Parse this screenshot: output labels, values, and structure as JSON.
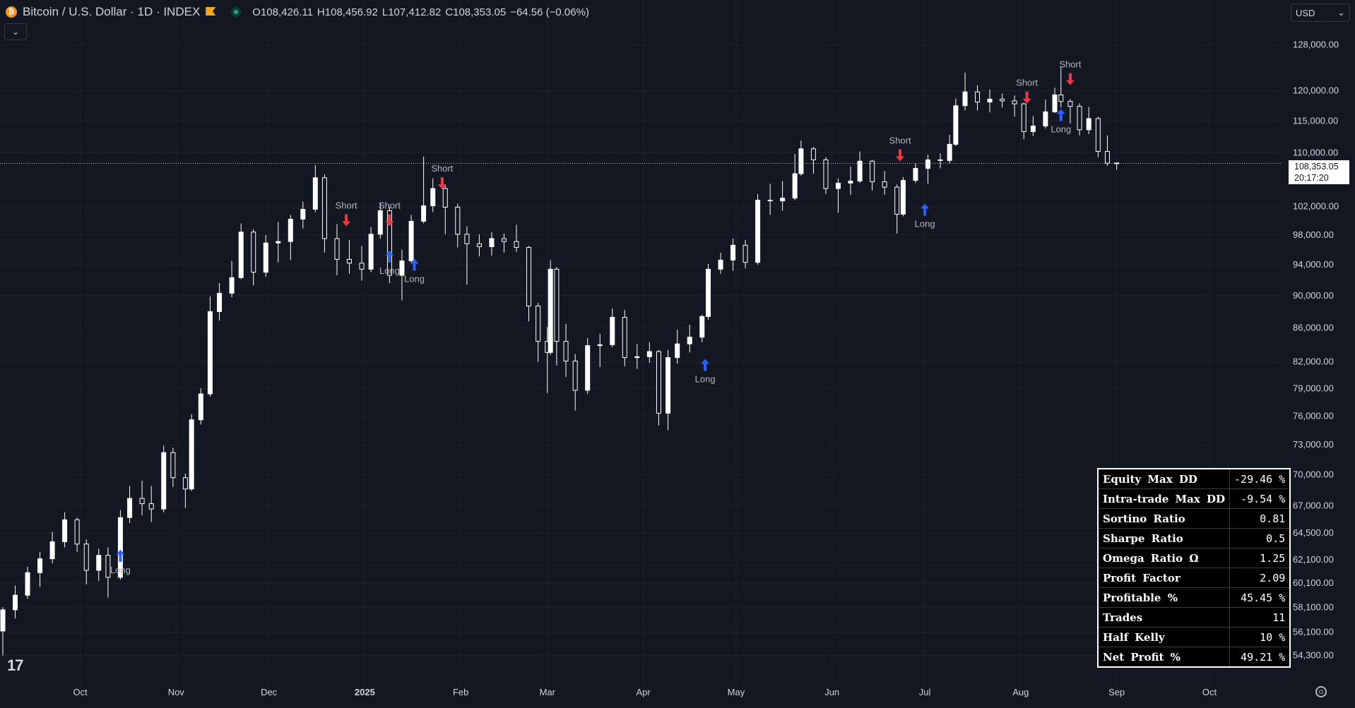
{
  "header": {
    "symbol": "Bitcoin / U.S. Dollar · 1D · INDEX",
    "ohlc": [
      {
        "key": "O",
        "value": "108,426.11"
      },
      {
        "key": "H",
        "value": "108,456.92"
      },
      {
        "key": "L",
        "value": "107,412.82"
      },
      {
        "key": "C",
        "value": "108,353.05"
      },
      {
        "key": "",
        "value": "−64.56 (−0.06%)"
      }
    ]
  },
  "currency": {
    "label": "USD"
  },
  "last_price": {
    "value": "108,353.05",
    "countdown": "20:17:20"
  },
  "stats_table": [
    {
      "label": "Equity Max DD",
      "value": "-29.46 %"
    },
    {
      "label": "Intra-trade Max DD",
      "value": "-9.54 %"
    },
    {
      "label": "Sortino Ratio",
      "value": "0.81"
    },
    {
      "label": "Sharpe Ratio",
      "value": "0.5"
    },
    {
      "label": "Omega Ratio Ω",
      "value": "1.25"
    },
    {
      "label": "Profit Factor",
      "value": "2.09"
    },
    {
      "label": "Profitable %",
      "value": "45.45 %"
    },
    {
      "label": "Trades",
      "value": "11"
    },
    {
      "label": "Half Kelly",
      "value": "10 %"
    },
    {
      "label": "Net Profit %",
      "value": "49.21 %"
    }
  ],
  "colors": {
    "background": "#131722",
    "grid": "#1e222d",
    "candle": "#ffffff",
    "long": "#2962ff",
    "short": "#f23645",
    "text": "#d1d4dc"
  },
  "chart_data": {
    "type": "candlestick",
    "y_scale": "log",
    "ylim": [
      52900,
      131000
    ],
    "y_ticks": [
      {
        "v": 128000,
        "label": "128,000.00"
      },
      {
        "v": 120000,
        "label": "120,000.00"
      },
      {
        "v": 115000,
        "label": "115,000.00"
      },
      {
        "v": 110000,
        "label": "110,000.00"
      },
      {
        "v": 102000,
        "label": "102,000.00"
      },
      {
        "v": 98000,
        "label": "98,000.00"
      },
      {
        "v": 94000,
        "label": "94,000.00"
      },
      {
        "v": 90000,
        "label": "90,000.00"
      },
      {
        "v": 86000,
        "label": "86,000.00"
      },
      {
        "v": 82000,
        "label": "82,000.00"
      },
      {
        "v": 79000,
        "label": "79,000.00"
      },
      {
        "v": 76000,
        "label": "76,000.00"
      },
      {
        "v": 73000,
        "label": "73,000.00"
      },
      {
        "v": 70000,
        "label": "70,000.00"
      },
      {
        "v": 67000,
        "label": "67,000.00"
      },
      {
        "v": 64500,
        "label": "64,500.00"
      },
      {
        "v": 62100,
        "label": "62,100.00"
      },
      {
        "v": 60100,
        "label": "60,100.00"
      },
      {
        "v": 58100,
        "label": "58,100.00"
      },
      {
        "v": 56100,
        "label": "56,100.00"
      },
      {
        "v": 54300,
        "label": "54,300.00"
      }
    ],
    "x_ticks": [
      {
        "d": "2024-10-01",
        "label": "Oct",
        "bold": false
      },
      {
        "d": "2024-11-01",
        "label": "Nov",
        "bold": false
      },
      {
        "d": "2024-12-01",
        "label": "Dec",
        "bold": false
      },
      {
        "d": "2025-01-01",
        "label": "2025",
        "bold": true
      },
      {
        "d": "2025-02-01",
        "label": "Feb",
        "bold": false
      },
      {
        "d": "2025-03-01",
        "label": "Mar",
        "bold": false
      },
      {
        "d": "2025-04-01",
        "label": "Apr",
        "bold": false
      },
      {
        "d": "2025-05-01",
        "label": "May",
        "bold": false
      },
      {
        "d": "2025-06-01",
        "label": "Jun",
        "bold": false
      },
      {
        "d": "2025-07-01",
        "label": "Jul",
        "bold": false
      },
      {
        "d": "2025-08-01",
        "label": "Aug",
        "bold": false
      },
      {
        "d": "2025-09-01",
        "label": "Sep",
        "bold": false
      },
      {
        "d": "2025-10-01",
        "label": "Oct",
        "bold": false
      }
    ],
    "x_range": [
      "2024-09-06",
      "2025-10-01"
    ],
    "last_close": 108353.05,
    "candles": [
      {
        "d": "2024-09-06",
        "o": 56200,
        "h": 58100,
        "l": 54300,
        "c": 57900
      },
      {
        "d": "2024-09-10",
        "o": 57900,
        "h": 59900,
        "l": 57200,
        "c": 59100
      },
      {
        "d": "2024-09-14",
        "o": 59100,
        "h": 61500,
        "l": 58800,
        "c": 61000
      },
      {
        "d": "2024-09-18",
        "o": 61000,
        "h": 62800,
        "l": 59800,
        "c": 62200
      },
      {
        "d": "2024-09-22",
        "o": 62200,
        "h": 64600,
        "l": 61800,
        "c": 63700
      },
      {
        "d": "2024-09-26",
        "o": 63700,
        "h": 66400,
        "l": 63200,
        "c": 65700
      },
      {
        "d": "2024-09-30",
        "o": 65700,
        "h": 65900,
        "l": 62800,
        "c": 63500
      },
      {
        "d": "2024-10-03",
        "o": 63500,
        "h": 63900,
        "l": 60000,
        "c": 61200
      },
      {
        "d": "2024-10-07",
        "o": 61200,
        "h": 63100,
        "l": 60300,
        "c": 62500
      },
      {
        "d": "2024-10-10",
        "o": 62500,
        "h": 63200,
        "l": 58900,
        "c": 60600
      },
      {
        "d": "2024-10-14",
        "o": 60600,
        "h": 66600,
        "l": 60400,
        "c": 65900
      },
      {
        "d": "2024-10-17",
        "o": 65900,
        "h": 68900,
        "l": 65400,
        "c": 67700
      },
      {
        "d": "2024-10-21",
        "o": 67700,
        "h": 69400,
        "l": 66100,
        "c": 67200
      },
      {
        "d": "2024-10-24",
        "o": 67200,
        "h": 68900,
        "l": 65500,
        "c": 66700
      },
      {
        "d": "2024-10-28",
        "o": 66700,
        "h": 72900,
        "l": 66400,
        "c": 72200
      },
      {
        "d": "2024-10-31",
        "o": 72200,
        "h": 72700,
        "l": 68800,
        "c": 69700
      },
      {
        "d": "2024-11-04",
        "o": 69700,
        "h": 70100,
        "l": 66800,
        "c": 68600
      },
      {
        "d": "2024-11-06",
        "o": 68600,
        "h": 76200,
        "l": 68400,
        "c": 75600
      },
      {
        "d": "2024-11-09",
        "o": 75600,
        "h": 79000,
        "l": 75100,
        "c": 78400
      },
      {
        "d": "2024-11-12",
        "o": 78400,
        "h": 89900,
        "l": 78100,
        "c": 88000
      },
      {
        "d": "2024-11-15",
        "o": 88000,
        "h": 91600,
        "l": 86900,
        "c": 90300
      },
      {
        "d": "2024-11-19",
        "o": 90300,
        "h": 94500,
        "l": 89800,
        "c": 92300
      },
      {
        "d": "2024-11-22",
        "o": 92300,
        "h": 99600,
        "l": 92100,
        "c": 98400
      },
      {
        "d": "2024-11-26",
        "o": 98400,
        "h": 98800,
        "l": 91300,
        "c": 93000
      },
      {
        "d": "2024-11-30",
        "o": 93000,
        "h": 98000,
        "l": 92400,
        "c": 96900
      },
      {
        "d": "2024-12-04",
        "o": 96900,
        "h": 99800,
        "l": 94300,
        "c": 97100
      },
      {
        "d": "2024-12-08",
        "o": 97100,
        "h": 100800,
        "l": 94600,
        "c": 100200
      },
      {
        "d": "2024-12-12",
        "o": 100200,
        "h": 102700,
        "l": 98900,
        "c": 101600
      },
      {
        "d": "2024-12-16",
        "o": 101600,
        "h": 108100,
        "l": 101200,
        "c": 106200
      },
      {
        "d": "2024-12-19",
        "o": 106200,
        "h": 106700,
        "l": 95600,
        "c": 97500
      },
      {
        "d": "2024-12-23",
        "o": 97500,
        "h": 99500,
        "l": 92600,
        "c": 94700
      },
      {
        "d": "2024-12-27",
        "o": 94700,
        "h": 97300,
        "l": 92800,
        "c": 94200
      },
      {
        "d": "2024-12-31",
        "o": 94200,
        "h": 96500,
        "l": 91900,
        "c": 93400
      },
      {
        "d": "2025-01-03",
        "o": 93400,
        "h": 99100,
        "l": 93000,
        "c": 98100
      },
      {
        "d": "2025-01-06",
        "o": 98100,
        "h": 102600,
        "l": 97500,
        "c": 101400
      },
      {
        "d": "2025-01-09",
        "o": 101400,
        "h": 101900,
        "l": 91600,
        "c": 92600
      },
      {
        "d": "2025-01-13",
        "o": 92600,
        "h": 96000,
        "l": 89400,
        "c": 94500
      },
      {
        "d": "2025-01-16",
        "o": 94500,
        "h": 100800,
        "l": 94300,
        "c": 99900
      },
      {
        "d": "2025-01-20",
        "o": 99900,
        "h": 109400,
        "l": 99600,
        "c": 102100
      },
      {
        "d": "2025-01-23",
        "o": 102100,
        "h": 106100,
        "l": 101200,
        "c": 104600
      },
      {
        "d": "2025-01-27",
        "o": 104600,
        "h": 105200,
        "l": 98100,
        "c": 101900
      },
      {
        "d": "2025-01-31",
        "o": 101900,
        "h": 102400,
        "l": 96300,
        "c": 98100
      },
      {
        "d": "2025-02-03",
        "o": 98100,
        "h": 99200,
        "l": 91400,
        "c": 96800
      },
      {
        "d": "2025-02-07",
        "o": 96800,
        "h": 98100,
        "l": 95100,
        "c": 96400
      },
      {
        "d": "2025-02-11",
        "o": 96400,
        "h": 98400,
        "l": 95200,
        "c": 97500
      },
      {
        "d": "2025-02-15",
        "o": 97500,
        "h": 98200,
        "l": 95600,
        "c": 97100
      },
      {
        "d": "2025-02-19",
        "o": 97100,
        "h": 99400,
        "l": 95700,
        "c": 96300
      },
      {
        "d": "2025-02-23",
        "o": 96300,
        "h": 96500,
        "l": 86800,
        "c": 88700
      },
      {
        "d": "2025-02-26",
        "o": 88700,
        "h": 89100,
        "l": 82000,
        "c": 84400
      },
      {
        "d": "2025-03-01",
        "o": 84400,
        "h": 86100,
        "l": 78500,
        "c": 83100
      },
      {
        "d": "2025-03-02",
        "o": 83100,
        "h": 94600,
        "l": 82800,
        "c": 93400
      },
      {
        "d": "2025-03-04",
        "o": 93400,
        "h": 93700,
        "l": 81600,
        "c": 84400
      },
      {
        "d": "2025-03-07",
        "o": 84400,
        "h": 86500,
        "l": 80300,
        "c": 82100
      },
      {
        "d": "2025-03-10",
        "o": 82100,
        "h": 82900,
        "l": 76600,
        "c": 78800
      },
      {
        "d": "2025-03-14",
        "o": 78800,
        "h": 84800,
        "l": 78400,
        "c": 83900
      },
      {
        "d": "2025-03-18",
        "o": 83900,
        "h": 85300,
        "l": 81400,
        "c": 84000
      },
      {
        "d": "2025-03-22",
        "o": 84000,
        "h": 88400,
        "l": 83700,
        "c": 87300
      },
      {
        "d": "2025-03-26",
        "o": 87300,
        "h": 88200,
        "l": 81500,
        "c": 82500
      },
      {
        "d": "2025-03-30",
        "o": 82500,
        "h": 84100,
        "l": 81200,
        "c": 82600
      },
      {
        "d": "2025-04-03",
        "o": 82600,
        "h": 84300,
        "l": 81900,
        "c": 83200
      },
      {
        "d": "2025-04-06",
        "o": 83200,
        "h": 83400,
        "l": 75000,
        "c": 76300
      },
      {
        "d": "2025-04-09",
        "o": 76300,
        "h": 83400,
        "l": 74500,
        "c": 82500
      },
      {
        "d": "2025-04-12",
        "o": 82500,
        "h": 85800,
        "l": 81800,
        "c": 84100
      },
      {
        "d": "2025-04-16",
        "o": 84100,
        "h": 86400,
        "l": 83100,
        "c": 84900
      },
      {
        "d": "2025-04-20",
        "o": 84900,
        "h": 87600,
        "l": 84300,
        "c": 87400
      },
      {
        "d": "2025-04-22",
        "o": 87400,
        "h": 94100,
        "l": 87000,
        "c": 93400
      },
      {
        "d": "2025-04-26",
        "o": 93400,
        "h": 95600,
        "l": 92800,
        "c": 94600
      },
      {
        "d": "2025-04-30",
        "o": 94600,
        "h": 97500,
        "l": 93200,
        "c": 96600
      },
      {
        "d": "2025-05-04",
        "o": 96600,
        "h": 97300,
        "l": 93500,
        "c": 94300
      },
      {
        "d": "2025-05-08",
        "o": 94300,
        "h": 103800,
        "l": 94000,
        "c": 102900
      },
      {
        "d": "2025-05-12",
        "o": 102900,
        "h": 105300,
        "l": 100800,
        "c": 102800
      },
      {
        "d": "2025-05-16",
        "o": 102800,
        "h": 105700,
        "l": 101400,
        "c": 103200
      },
      {
        "d": "2025-05-20",
        "o": 103200,
        "h": 109800,
        "l": 102900,
        "c": 106800
      },
      {
        "d": "2025-05-22",
        "o": 106800,
        "h": 111900,
        "l": 106500,
        "c": 110600
      },
      {
        "d": "2025-05-26",
        "o": 110600,
        "h": 110900,
        "l": 106800,
        "c": 108900
      },
      {
        "d": "2025-05-30",
        "o": 108900,
        "h": 109300,
        "l": 103800,
        "c": 104600
      },
      {
        "d": "2025-06-03",
        "o": 104600,
        "h": 106100,
        "l": 101100,
        "c": 105400
      },
      {
        "d": "2025-06-07",
        "o": 105400,
        "h": 107900,
        "l": 103700,
        "c": 105700
      },
      {
        "d": "2025-06-10",
        "o": 105700,
        "h": 110200,
        "l": 105400,
        "c": 108700
      },
      {
        "d": "2025-06-14",
        "o": 108700,
        "h": 108900,
        "l": 104300,
        "c": 105600
      },
      {
        "d": "2025-06-18",
        "o": 105600,
        "h": 107200,
        "l": 103700,
        "c": 104800
      },
      {
        "d": "2025-06-22",
        "o": 104800,
        "h": 105200,
        "l": 98200,
        "c": 100900
      },
      {
        "d": "2025-06-24",
        "o": 100900,
        "h": 106300,
        "l": 100600,
        "c": 105800
      },
      {
        "d": "2025-06-28",
        "o": 105800,
        "h": 108400,
        "l": 105400,
        "c": 107600
      },
      {
        "d": "2025-07-02",
        "o": 107600,
        "h": 109700,
        "l": 105300,
        "c": 108900
      },
      {
        "d": "2025-07-06",
        "o": 108900,
        "h": 109900,
        "l": 107600,
        "c": 108800
      },
      {
        "d": "2025-07-09",
        "o": 108800,
        "h": 112800,
        "l": 108300,
        "c": 111300
      },
      {
        "d": "2025-07-11",
        "o": 111300,
        "h": 118700,
        "l": 111000,
        "c": 117500
      },
      {
        "d": "2025-07-14",
        "o": 117500,
        "h": 123100,
        "l": 116700,
        "c": 119800
      },
      {
        "d": "2025-07-18",
        "o": 119800,
        "h": 120900,
        "l": 116700,
        "c": 118100
      },
      {
        "d": "2025-07-22",
        "o": 118100,
        "h": 120200,
        "l": 116400,
        "c": 118600
      },
      {
        "d": "2025-07-26",
        "o": 118600,
        "h": 119500,
        "l": 117200,
        "c": 118300
      },
      {
        "d": "2025-07-30",
        "o": 118300,
        "h": 119200,
        "l": 115700,
        "c": 117800
      },
      {
        "d": "2025-08-02",
        "o": 117800,
        "h": 118000,
        "l": 112100,
        "c": 113300
      },
      {
        "d": "2025-08-05",
        "o": 113300,
        "h": 115800,
        "l": 112600,
        "c": 114200
      },
      {
        "d": "2025-08-09",
        "o": 114200,
        "h": 118500,
        "l": 113800,
        "c": 116500
      },
      {
        "d": "2025-08-12",
        "o": 116500,
        "h": 120500,
        "l": 116300,
        "c": 119300
      },
      {
        "d": "2025-08-14",
        "o": 119300,
        "h": 124100,
        "l": 117200,
        "c": 118200
      },
      {
        "d": "2025-08-17",
        "o": 118200,
        "h": 118600,
        "l": 114600,
        "c": 117400
      },
      {
        "d": "2025-08-20",
        "o": 117400,
        "h": 117900,
        "l": 112700,
        "c": 113600
      },
      {
        "d": "2025-08-23",
        "o": 113600,
        "h": 117300,
        "l": 112900,
        "c": 115400
      },
      {
        "d": "2025-08-26",
        "o": 115400,
        "h": 115700,
        "l": 109300,
        "c": 110200
      },
      {
        "d": "2025-08-29",
        "o": 110200,
        "h": 112700,
        "l": 108000,
        "c": 108400
      },
      {
        "d": "2025-09-01",
        "o": 108426.11,
        "h": 108456.92,
        "l": 107412.82,
        "c": 108353.05
      }
    ],
    "signals": [
      {
        "type": "long",
        "d": "2024-10-14",
        "price": 62800,
        "label": "Long"
      },
      {
        "type": "short",
        "d": "2024-12-26",
        "price": 99500,
        "label": "Short"
      },
      {
        "type": "short",
        "d": "2025-01-09",
        "price": 99500,
        "label": "Short"
      },
      {
        "type": "long",
        "d": "2025-01-09",
        "price": 95600,
        "label": "Long"
      },
      {
        "type": "long",
        "d": "2025-01-17",
        "price": 94500,
        "label": "Long"
      },
      {
        "type": "short",
        "d": "2025-01-26",
        "price": 104800,
        "label": "Short"
      },
      {
        "type": "long",
        "d": "2025-04-21",
        "price": 82100,
        "label": "Long"
      },
      {
        "type": "short",
        "d": "2025-06-23",
        "price": 109000,
        "label": "Short"
      },
      {
        "type": "long",
        "d": "2025-07-01",
        "price": 102100,
        "label": "Long"
      },
      {
        "type": "short",
        "d": "2025-08-03",
        "price": 118200,
        "label": "Short"
      },
      {
        "type": "long",
        "d": "2025-08-14",
        "price": 116600,
        "label": "Long"
      },
      {
        "type": "short",
        "d": "2025-08-17",
        "price": 121300,
        "label": "Short"
      }
    ]
  }
}
